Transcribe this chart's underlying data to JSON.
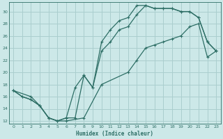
{
  "xlabel": "Humidex (Indice chaleur)",
  "bg_color": "#cce8e8",
  "line_color": "#2d6e65",
  "grid_color": "#aacece",
  "xlim": [
    -0.5,
    23.5
  ],
  "ylim": [
    11.5,
    31.5
  ],
  "xticks": [
    0,
    1,
    2,
    3,
    4,
    5,
    6,
    7,
    8,
    9,
    10,
    11,
    12,
    13,
    14,
    15,
    16,
    17,
    18,
    19,
    20,
    21,
    22,
    23
  ],
  "yticks": [
    12,
    14,
    16,
    18,
    20,
    22,
    24,
    26,
    28,
    30
  ],
  "line1_x": [
    0,
    1,
    2,
    3,
    4,
    5,
    6,
    7,
    8,
    9,
    10,
    11,
    12,
    13,
    14,
    15,
    16,
    17,
    18,
    19,
    20,
    21,
    22,
    23
  ],
  "line1_y": [
    17,
    16,
    15.5,
    14.5,
    12.5,
    12,
    12.5,
    12.5,
    19.5,
    17.5,
    25,
    27,
    28.5,
    29,
    31,
    31,
    30.5,
    30.5,
    30.5,
    30,
    30,
    29,
    25,
    23.5
  ],
  "line2_x": [
    0,
    1,
    2,
    3,
    4,
    5,
    6,
    7,
    8,
    9,
    10,
    11,
    12,
    13,
    14,
    15,
    16,
    17,
    18,
    19,
    20,
    21,
    22,
    23
  ],
  "line2_y": [
    17,
    16,
    15.5,
    14.5,
    12.5,
    12,
    12.5,
    17.5,
    19.5,
    17.5,
    23.5,
    25,
    27,
    27.5,
    29.5,
    31,
    30.5,
    30.5,
    30.5,
    30,
    30,
    29,
    25,
    23.5
  ],
  "line3_x": [
    0,
    2,
    3,
    4,
    5,
    6,
    8,
    10,
    13,
    14,
    15,
    16,
    17,
    18,
    19,
    20,
    21,
    22,
    23
  ],
  "line3_y": [
    17,
    16,
    14.5,
    12.5,
    12,
    12,
    12.5,
    18,
    20,
    22,
    24,
    24.5,
    25,
    25.5,
    26,
    27.5,
    28,
    22.5,
    23.5
  ]
}
